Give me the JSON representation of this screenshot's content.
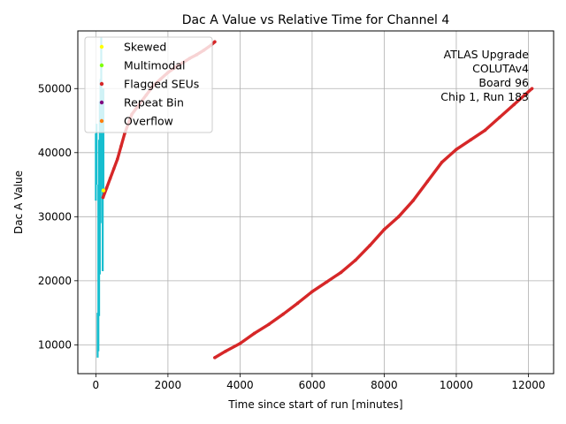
{
  "chart_data": {
    "type": "scatter",
    "title": "Dac A Value vs Relative Time for Channel 4",
    "xlabel": "Time since start of run [minutes]",
    "ylabel": "Dac A Value",
    "xlim": [
      -500,
      12700
    ],
    "ylim": [
      5500,
      59000
    ],
    "xticks": [
      0,
      2000,
      4000,
      6000,
      8000,
      10000,
      12000
    ],
    "yticks": [
      10000,
      20000,
      30000,
      40000,
      50000
    ],
    "grid": true,
    "legend_position": "top-left",
    "annotation": [
      "ATLAS Upgrade",
      "COLUTAv4",
      "Board 96",
      "Chip 1, Run 183"
    ],
    "annotation_position": "top-right",
    "legend": [
      {
        "name": "Skewed",
        "color": "#ffff00"
      },
      {
        "name": "Multimodal",
        "color": "#7fff00"
      },
      {
        "name": "Flagged SEUs",
        "color": "#d62728"
      },
      {
        "name": "Repeat Bin",
        "color": "#800080"
      },
      {
        "name": "Overflow",
        "color": "#ff7f0e"
      }
    ],
    "series": [
      {
        "name": "Flagged SEUs",
        "color": "#d62728",
        "x": [
          200,
          300,
          400,
          500,
          600,
          700,
          800,
          900,
          1000,
          1200,
          1400,
          1600,
          1800,
          2000,
          2200,
          2400,
          2600,
          2800,
          3000,
          3200,
          3300
        ],
        "y": [
          33000,
          34500,
          36000,
          37500,
          39000,
          41000,
          43000,
          44500,
          46000,
          47500,
          49000,
          50500,
          51500,
          52500,
          53300,
          54000,
          54700,
          55300,
          56000,
          56800,
          57300
        ]
      },
      {
        "name": "Flagged SEUs",
        "color": "#d62728",
        "x": [
          3300,
          3600,
          4000,
          4400,
          4800,
          5200,
          5600,
          6000,
          6400,
          6800,
          7200,
          7600,
          8000,
          8400,
          8800,
          9200,
          9600,
          10000,
          10400,
          10800,
          11200,
          11600,
          12100
        ],
        "y": [
          8000,
          9000,
          10200,
          11800,
          13200,
          14800,
          16500,
          18300,
          19800,
          21300,
          23200,
          25500,
          28000,
          30000,
          32500,
          35500,
          38500,
          40500,
          42000,
          43500,
          45500,
          47500,
          50000
        ]
      },
      {
        "name": "Skewed",
        "color": "#ffff00",
        "x": [
          210
        ],
        "y": [
          34100
        ]
      }
    ],
    "spikes": {
      "color": "#17becf",
      "x": [
        0,
        20,
        50,
        70,
        90,
        110,
        130,
        150,
        170,
        190,
        210
      ],
      "y_low": [
        32500,
        35000,
        8000,
        9000,
        14500,
        21000,
        29000,
        34000,
        38500,
        21500,
        34000
      ],
      "y_high": [
        43000,
        44500,
        15000,
        35000,
        42000,
        48000,
        51500,
        58000,
        50000,
        46000,
        50000
      ]
    }
  }
}
